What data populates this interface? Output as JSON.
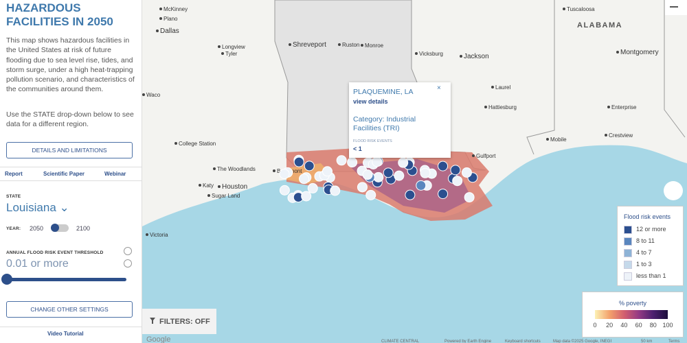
{
  "sidebar": {
    "title": "HAZARDOUS FACILITIES IN 2050",
    "description": "This map shows hazardous facilities in the United States at risk of future flooding due to sea level rise, tides, and storm surge, under a high heat-trapping pollution scenario, and characteristics of the communities around them.",
    "instruction": "Use the STATE drop-down below to see data for a different region.",
    "details_button": "DETAILS AND LIMITATIONS",
    "links": [
      "Report",
      "Scientific Paper",
      "Webinar"
    ],
    "state_label": "STATE",
    "state": "Louisiana",
    "year_label": "YEAR:",
    "year_options": [
      "2050",
      "2100"
    ],
    "threshold_label": "ANNUAL FLOOD RISK EVENT THRESHOLD",
    "threshold": "0.01 or more",
    "settings_button": "CHANGE OTHER SETTINGS",
    "video_link": "Video Tutorial"
  },
  "map": {
    "cities": [
      "McKinney",
      "Plano",
      "Dallas",
      "Longview",
      "Tyler",
      "Shreveport",
      "Ruston",
      "Monroe",
      "Vicksburg",
      "Jackson",
      "Tuscaloosa",
      "Montgomery",
      "Laurel",
      "Hattiesburg",
      "Enterprise",
      "Crestview",
      "Mobile",
      "Waco",
      "College Station",
      "The Woodlands",
      "Beaumont",
      "Katy",
      "Houston",
      "Sugar Land",
      "Victoria",
      "Gulfport"
    ],
    "state_label": "ALABAMA",
    "filters_button": "FILTERS: OFF",
    "attribution": [
      "Google",
      "CLIMATE CENTRAL",
      "Powered by Earth Engine",
      "Keyboard shortcuts",
      "Map data ©2025 Google, INEGI",
      "50 km",
      "Terms"
    ]
  },
  "popup": {
    "title": "PLAQUEMINE, LA",
    "link": "view details",
    "category": "Category: Industrial Facilities (TRI)",
    "flood_label": "FLOOD RISK EVENTS",
    "flood_value": "< 1"
  },
  "flood_legend": {
    "title": "Flood risk events",
    "items": [
      {
        "label": "12 or more",
        "color": "#2c4f8f"
      },
      {
        "label": "8 to 11",
        "color": "#5a86be"
      },
      {
        "label": "4 to 7",
        "color": "#8eb3d6"
      },
      {
        "label": "1 to 3",
        "color": "#c5d9ea"
      },
      {
        "label": "less than 1",
        "color": "#eef3f9"
      }
    ]
  },
  "poverty_legend": {
    "title": "% poverty",
    "ticks": [
      0,
      20,
      40,
      60,
      80,
      100
    ]
  }
}
